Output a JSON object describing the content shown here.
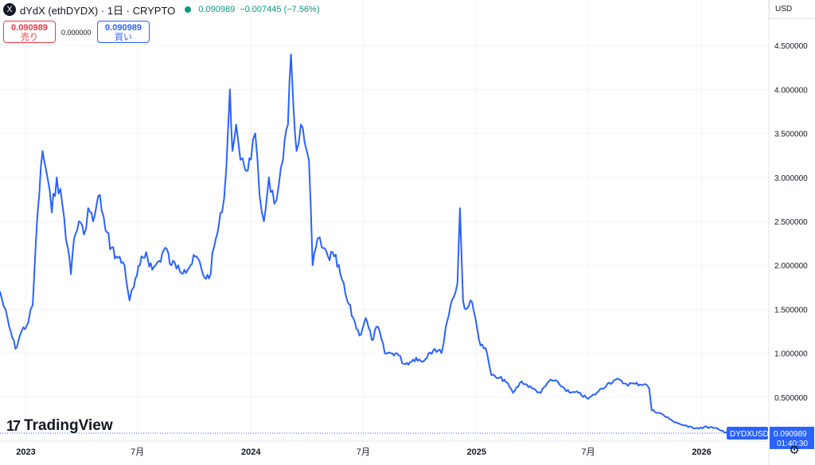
{
  "header": {
    "symbol": "dYdX (ethDYDX) · 1日 · CRYPTO",
    "logo": "X",
    "price": "0.090989",
    "change": "−0.007445 (−7.56%)",
    "status_color": "#089981"
  },
  "trade": {
    "sell_price": "0.090989",
    "sell_label": "売り",
    "spread": "0.000000",
    "buy_price": "0.090989",
    "buy_label": "買い"
  },
  "currency": "USD",
  "brand": {
    "mark": "17",
    "name": "TradingView"
  },
  "colors": {
    "line": "#2962ff",
    "label_bg": "#2962ff",
    "grid": "#f0f3fa"
  },
  "chart_data": {
    "type": "line",
    "symbol_label": "DYDXUSD",
    "last_value": "0.090989",
    "countdown": "01:40:30",
    "last": 0.090989,
    "ylim": [
      0,
      4.8
    ],
    "y_ticks": [
      {
        "value": 0.5,
        "label": "0.500000"
      },
      {
        "value": 1.0,
        "label": "1.000000"
      },
      {
        "value": 1.5,
        "label": "1.500000"
      },
      {
        "value": 2.0,
        "label": "2.000000"
      },
      {
        "value": 2.5,
        "label": "2.500000"
      },
      {
        "value": 3.0,
        "label": "3.000000"
      },
      {
        "value": 3.5,
        "label": "3.500000"
      },
      {
        "value": 4.0,
        "label": "4.000000"
      },
      {
        "value": 4.5,
        "label": "4.500000"
      }
    ],
    "xlim": [
      "2022-11-20",
      "2026-04-20"
    ],
    "x_ticks": [
      {
        "date": "2023-01-01",
        "label": "2023",
        "bold": true
      },
      {
        "date": "2023-07-01",
        "label": "7月",
        "bold": false
      },
      {
        "date": "2024-01-01",
        "label": "2024",
        "bold": true
      },
      {
        "date": "2024-07-01",
        "label": "7月",
        "bold": false
      },
      {
        "date": "2025-01-01",
        "label": "2025",
        "bold": true
      },
      {
        "date": "2025-07-01",
        "label": "7月",
        "bold": false
      },
      {
        "date": "2026-01-01",
        "label": "2026",
        "bold": true
      }
    ],
    "points": [
      [
        "2022-11-20",
        1.7
      ],
      [
        "2022-12-05",
        1.3
      ],
      [
        "2022-12-15",
        1.05
      ],
      [
        "2022-12-25",
        1.25
      ],
      [
        "2023-01-05",
        1.35
      ],
      [
        "2023-01-12",
        1.55
      ],
      [
        "2023-01-20",
        2.6
      ],
      [
        "2023-01-28",
        3.3
      ],
      [
        "2023-02-05",
        3.0
      ],
      [
        "2023-02-12",
        2.6
      ],
      [
        "2023-02-20",
        3.0
      ],
      [
        "2023-03-01",
        2.7
      ],
      [
        "2023-03-10",
        2.2
      ],
      [
        "2023-03-15",
        1.9
      ],
      [
        "2023-03-20",
        2.3
      ],
      [
        "2023-03-28",
        2.5
      ],
      [
        "2023-04-05",
        2.35
      ],
      [
        "2023-04-12",
        2.65
      ],
      [
        "2023-04-20",
        2.5
      ],
      [
        "2023-05-01",
        2.8
      ],
      [
        "2023-05-10",
        2.4
      ],
      [
        "2023-05-20",
        2.2
      ],
      [
        "2023-05-28",
        2.1
      ],
      [
        "2023-06-10",
        2.0
      ],
      [
        "2023-06-18",
        1.6
      ],
      [
        "2023-06-25",
        1.75
      ],
      [
        "2023-07-05",
        2.0
      ],
      [
        "2023-07-15",
        2.15
      ],
      [
        "2023-07-25",
        1.95
      ],
      [
        "2023-08-05",
        2.05
      ],
      [
        "2023-08-15",
        2.2
      ],
      [
        "2023-08-25",
        2.0
      ],
      [
        "2023-09-05",
        2.0
      ],
      [
        "2023-09-15",
        1.95
      ],
      [
        "2023-09-25",
        2.0
      ],
      [
        "2023-10-05",
        2.1
      ],
      [
        "2023-10-15",
        1.9
      ],
      [
        "2023-10-25",
        1.85
      ],
      [
        "2023-11-05",
        2.3
      ],
      [
        "2023-11-15",
        2.6
      ],
      [
        "2023-11-22",
        3.1
      ],
      [
        "2023-11-28",
        4.0
      ],
      [
        "2023-12-02",
        3.3
      ],
      [
        "2023-12-08",
        3.6
      ],
      [
        "2023-12-15",
        3.2
      ],
      [
        "2023-12-22",
        3.1
      ],
      [
        "2024-01-01",
        3.2
      ],
      [
        "2024-01-08",
        3.5
      ],
      [
        "2024-01-15",
        2.8
      ],
      [
        "2024-01-22",
        2.5
      ],
      [
        "2024-01-30",
        3.0
      ],
      [
        "2024-02-08",
        2.7
      ],
      [
        "2024-02-15",
        2.9
      ],
      [
        "2024-02-22",
        3.2
      ],
      [
        "2024-03-01",
        3.6
      ],
      [
        "2024-03-06",
        4.4
      ],
      [
        "2024-03-10",
        3.8
      ],
      [
        "2024-03-15",
        3.3
      ],
      [
        "2024-03-22",
        3.6
      ],
      [
        "2024-03-28",
        3.4
      ],
      [
        "2024-04-04",
        3.2
      ],
      [
        "2024-04-10",
        2.0
      ],
      [
        "2024-04-18",
        2.3
      ],
      [
        "2024-04-25",
        2.2
      ],
      [
        "2024-05-05",
        2.1
      ],
      [
        "2024-05-15",
        2.1
      ],
      [
        "2024-05-25",
        1.9
      ],
      [
        "2024-06-05",
        1.6
      ],
      [
        "2024-06-15",
        1.4
      ],
      [
        "2024-06-25",
        1.2
      ],
      [
        "2024-07-05",
        1.4
      ],
      [
        "2024-07-15",
        1.15
      ],
      [
        "2024-07-25",
        1.3
      ],
      [
        "2024-08-05",
        1.0
      ],
      [
        "2024-08-15",
        1.0
      ],
      [
        "2024-08-25",
        1.0
      ],
      [
        "2024-09-05",
        0.88
      ],
      [
        "2024-09-15",
        0.9
      ],
      [
        "2024-09-25",
        0.95
      ],
      [
        "2024-10-05",
        0.9
      ],
      [
        "2024-10-15",
        1.0
      ],
      [
        "2024-10-25",
        1.05
      ],
      [
        "2024-11-05",
        1.0
      ],
      [
        "2024-11-12",
        1.3
      ],
      [
        "2024-11-22",
        1.6
      ],
      [
        "2024-12-01",
        1.8
      ],
      [
        "2024-12-05",
        2.65
      ],
      [
        "2024-12-10",
        1.6
      ],
      [
        "2024-12-15",
        1.5
      ],
      [
        "2024-12-22",
        1.6
      ],
      [
        "2024-12-30",
        1.4
      ],
      [
        "2025-01-05",
        1.15
      ],
      [
        "2025-01-10",
        1.1
      ],
      [
        "2025-01-18",
        1.0
      ],
      [
        "2025-01-25",
        0.75
      ],
      [
        "2025-02-02",
        0.72
      ],
      [
        "2025-02-15",
        0.7
      ],
      [
        "2025-03-01",
        0.55
      ],
      [
        "2025-03-15",
        0.68
      ],
      [
        "2025-04-01",
        0.6
      ],
      [
        "2025-04-15",
        0.55
      ],
      [
        "2025-05-01",
        0.7
      ],
      [
        "2025-05-15",
        0.65
      ],
      [
        "2025-06-01",
        0.55
      ],
      [
        "2025-06-15",
        0.55
      ],
      [
        "2025-07-01",
        0.48
      ],
      [
        "2025-07-15",
        0.55
      ],
      [
        "2025-08-01",
        0.65
      ],
      [
        "2025-08-15",
        0.7
      ],
      [
        "2025-09-01",
        0.65
      ],
      [
        "2025-09-15",
        0.65
      ],
      [
        "2025-10-01",
        0.65
      ],
      [
        "2025-10-08",
        0.6
      ],
      [
        "2025-10-12",
        0.35
      ],
      [
        "2025-10-25",
        0.32
      ],
      [
        "2025-11-10",
        0.25
      ],
      [
        "2025-11-25",
        0.2
      ],
      [
        "2025-12-10",
        0.16
      ],
      [
        "2025-12-25",
        0.15
      ],
      [
        "2026-01-10",
        0.16
      ],
      [
        "2026-01-20",
        0.15
      ],
      [
        "2026-02-01",
        0.12
      ],
      [
        "2026-02-15",
        0.1
      ],
      [
        "2026-03-01",
        0.095
      ],
      [
        "2026-03-10",
        0.090989
      ]
    ]
  }
}
